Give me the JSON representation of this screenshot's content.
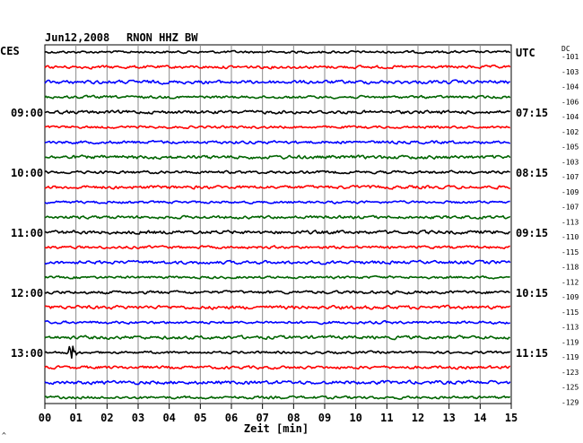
{
  "header": {
    "date": "Jun12,2008",
    "station": "RNON HHZ BW",
    "left_tz": "CES",
    "right_tz": "UTC",
    "dc_label": "DC"
  },
  "chart_data": {
    "type": "line",
    "title": "Jun12,2008   RNON HHZ BW",
    "xlabel": "Zeit [min]",
    "xlim": [
      0,
      15
    ],
    "x_ticks": [
      "00",
      "01",
      "02",
      "03",
      "04",
      "05",
      "06",
      "07",
      "08",
      "09",
      "10",
      "11",
      "12",
      "13",
      "14",
      "15"
    ],
    "grid": true,
    "trace_colors": [
      "#000000",
      "#ff0000",
      "#0000ff",
      "#006400"
    ],
    "rows": 24,
    "left_hour_labels": [
      {
        "row": 4,
        "label": "09:00"
      },
      {
        "row": 8,
        "label": "10:00"
      },
      {
        "row": 12,
        "label": "11:00"
      },
      {
        "row": 16,
        "label": "12:00"
      },
      {
        "row": 20,
        "label": "13:00"
      }
    ],
    "right_time_labels": [
      {
        "row": 0,
        "label": "UTC"
      },
      {
        "row": 4,
        "label": "07:15"
      },
      {
        "row": 8,
        "label": "08:15"
      },
      {
        "row": 12,
        "label": "09:15"
      },
      {
        "row": 16,
        "label": "10:15"
      },
      {
        "row": 20,
        "label": "11:15"
      }
    ],
    "dc_offsets": [
      "-101",
      "-103",
      "-104",
      "-106",
      "-104",
      "-102",
      "-105",
      "-103",
      "-107",
      "-109",
      "-107",
      "-113",
      "-110",
      "-115",
      "-118",
      "-112",
      "-109",
      "-115",
      "-113",
      "-119",
      "-119",
      "-123",
      "-125",
      "-129"
    ],
    "events": [
      {
        "row": 20,
        "minute": 0.85,
        "description": "large amplitude burst"
      }
    ],
    "footnote": "^"
  }
}
